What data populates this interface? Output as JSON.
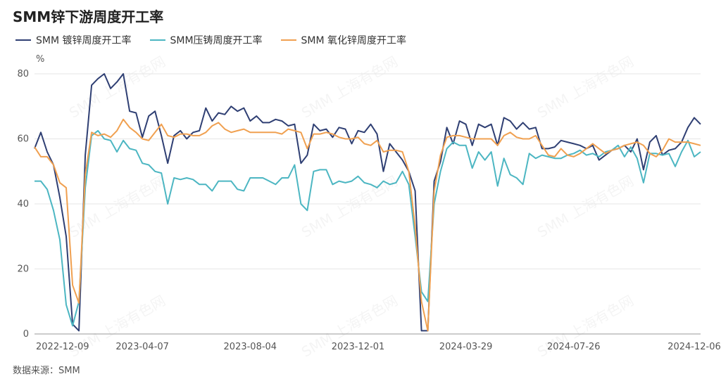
{
  "chart_data": {
    "type": "line",
    "title": "SMM锌下游周度开工率",
    "ylabel": "%",
    "ylim": [
      0,
      80
    ],
    "y_ticks": [
      0,
      20,
      40,
      60,
      80
    ],
    "x_tick_labels": [
      "2022-12-09",
      "2023-04-07",
      "2023-08-04",
      "2023-12-01",
      "2024-03-29",
      "2024-07-26",
      "2024-12-06"
    ],
    "x_tick_indices": [
      0,
      17,
      34,
      51,
      68,
      85,
      104
    ],
    "legend_position": "top-left",
    "grid": "horizontal",
    "watermark": "SMM 上海有色网",
    "source": "数据来源：SMM",
    "series": [
      {
        "name": "SMM 镀锌周度开工率",
        "color": "#2f3f73",
        "values": [
          57.0,
          62.0,
          56.0,
          52.0,
          42.0,
          30.0,
          3.0,
          1.0,
          55.0,
          76.5,
          78.5,
          80.0,
          75.5,
          77.5,
          80.0,
          68.5,
          68.0,
          60.5,
          67.0,
          68.5,
          61.0,
          52.5,
          61.0,
          62.5,
          60.0,
          62.0,
          62.5,
          69.5,
          65.5,
          68.0,
          67.5,
          70.0,
          68.5,
          69.5,
          65.5,
          67.0,
          65.0,
          65.0,
          66.0,
          65.5,
          64.0,
          64.5,
          52.5,
          55.0,
          64.5,
          62.5,
          63.0,
          60.5,
          63.5,
          63.0,
          58.5,
          62.5,
          62.0,
          64.5,
          61.5,
          50.0,
          58.5,
          56.0,
          53.5,
          50.0,
          44.0,
          1.0,
          1.0,
          47.0,
          53.0,
          63.5,
          58.5,
          65.5,
          64.5,
          58.0,
          64.5,
          63.5,
          64.5,
          58.0,
          66.5,
          65.5,
          63.0,
          65.0,
          63.0,
          63.5,
          57.0,
          57.0,
          57.5,
          59.5,
          59.0,
          58.5,
          58.0,
          57.0,
          58.0,
          53.5,
          55.0,
          56.5,
          57.0,
          58.0,
          56.0,
          60.0,
          50.5,
          59.0,
          61.0,
          55.0,
          56.5,
          57.0,
          59.0,
          63.5,
          66.5,
          64.5
        ]
      },
      {
        "name": "SMM压铸周度开工率",
        "color": "#4cb6c2",
        "values": [
          47.0,
          47.0,
          44.5,
          38.0,
          29.0,
          9.0,
          2.5,
          10.0,
          45.0,
          61.0,
          62.5,
          60.0,
          59.5,
          56.0,
          59.5,
          57.0,
          56.5,
          52.5,
          52.0,
          50.0,
          49.5,
          40.0,
          48.0,
          47.5,
          48.0,
          47.5,
          46.0,
          46.0,
          44.0,
          47.0,
          47.0,
          47.0,
          44.5,
          44.0,
          48.0,
          48.0,
          48.0,
          47.0,
          46.0,
          48.0,
          48.0,
          52.0,
          40.0,
          38.0,
          50.0,
          50.5,
          50.5,
          46.0,
          47.0,
          46.5,
          47.0,
          48.5,
          46.5,
          46.0,
          45.0,
          47.0,
          46.0,
          46.5,
          50.0,
          46.0,
          30.0,
          13.0,
          10.0,
          40.0,
          50.0,
          57.0,
          59.0,
          58.0,
          58.0,
          51.0,
          56.0,
          53.5,
          56.0,
          45.5,
          54.0,
          49.0,
          48.0,
          46.0,
          55.5,
          54.0,
          55.0,
          54.5,
          54.0,
          54.0,
          55.0,
          55.5,
          56.5,
          55.0,
          55.5,
          54.5,
          56.0,
          56.5,
          58.0,
          54.5,
          57.5,
          54.0,
          46.5,
          55.5,
          55.5,
          55.0,
          55.5,
          51.5,
          56.0,
          59.5,
          54.5,
          56.0
        ]
      },
      {
        "name": "SMM 氧化锌周度开工率",
        "color": "#f0a050",
        "values": [
          57.5,
          54.5,
          54.5,
          52.0,
          46.5,
          45.0,
          15.0,
          9.5,
          49.0,
          62.0,
          61.0,
          61.5,
          60.5,
          62.5,
          66.0,
          63.5,
          62.0,
          60.0,
          59.5,
          62.0,
          64.5,
          61.0,
          60.5,
          61.5,
          61.5,
          61.0,
          61.0,
          62.0,
          64.0,
          65.0,
          63.0,
          62.0,
          62.5,
          63.0,
          62.0,
          62.0,
          62.0,
          62.0,
          62.0,
          61.5,
          63.0,
          62.5,
          62.0,
          57.0,
          61.5,
          61.5,
          62.0,
          61.5,
          60.5,
          60.0,
          60.0,
          60.5,
          58.5,
          58.0,
          59.5,
          56.0,
          56.5,
          56.5,
          56.0,
          50.0,
          33.0,
          10.0,
          1.0,
          44.0,
          55.0,
          60.5,
          61.0,
          61.0,
          60.5,
          60.0,
          60.0,
          60.0,
          60.0,
          58.0,
          61.0,
          62.0,
          60.5,
          60.0,
          60.0,
          61.0,
          58.0,
          55.0,
          54.5,
          57.0,
          55.0,
          54.5,
          55.5,
          57.0,
          58.5,
          57.0,
          55.5,
          56.5,
          57.0,
          58.0,
          58.5,
          59.0,
          58.0,
          55.5,
          54.5,
          56.5,
          60.0,
          59.0,
          59.0,
          59.0,
          58.5,
          58.0
        ]
      }
    ]
  }
}
